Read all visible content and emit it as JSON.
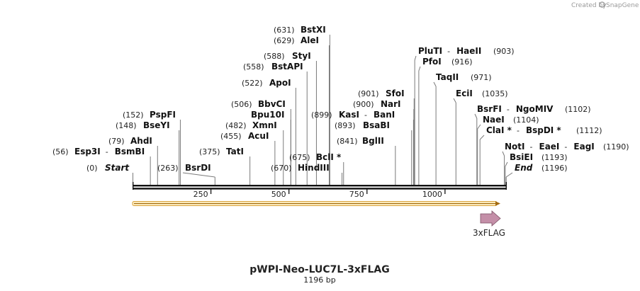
{
  "branding": {
    "created_by": "Created by",
    "app_name": "SnapGene"
  },
  "plasmid": {
    "name": "pWPI-Neo-LUC7L-3xFLAG",
    "length_label": "1196 bp",
    "length": 1196
  },
  "ruler": {
    "ticks": [
      250,
      500,
      750,
      1000
    ],
    "tick_labels": [
      "250",
      "500",
      "750",
      "1000"
    ]
  },
  "feature": {
    "name": "3xFLAG",
    "start": 1170,
    "end": 1196,
    "color": "#c48fa8",
    "direction": "forward"
  },
  "colors": {
    "backbone": "#111111",
    "orf_fill": "#fff1c6",
    "orf_stroke": "#d9a23c",
    "orf_arrow": "#a36a10"
  },
  "sites": [
    {
      "pos": "(631)",
      "names": [
        "BstXI"
      ],
      "bp": 631
    },
    {
      "pos": "(629)",
      "names": [
        "AleI"
      ],
      "bp": 629
    },
    {
      "pos": "(588)",
      "names": [
        "StyI"
      ],
      "bp": 588
    },
    {
      "pos": "(558)",
      "names": [
        "BstAPI"
      ],
      "bp": 558
    },
    {
      "pos": "(522)",
      "names": [
        "ApoI"
      ],
      "bp": 522
    },
    {
      "pos": "(506)",
      "names": [
        "BbvCI"
      ],
      "bp": 506
    },
    {
      "pos": "",
      "names": [
        "Bpu10I"
      ],
      "bp": 506
    },
    {
      "pos": "(482)",
      "names": [
        "XmnI"
      ],
      "bp": 482
    },
    {
      "pos": "(455)",
      "names": [
        "AcuI"
      ],
      "bp": 455
    },
    {
      "pos": "(375)",
      "names": [
        "TatI"
      ],
      "bp": 375
    },
    {
      "pos": "(152)",
      "names": [
        "PspFI"
      ],
      "bp": 152
    },
    {
      "pos": "(148)",
      "names": [
        "BseYI"
      ],
      "bp": 148
    },
    {
      "pos": "(79)",
      "names": [
        "AhdI"
      ],
      "bp": 79
    },
    {
      "pos": "(56)",
      "names": [
        "Esp3I",
        "BsmBI"
      ],
      "bp": 56
    },
    {
      "pos": "(0)",
      "names": [
        "Start"
      ],
      "bp": 0,
      "italic": true
    },
    {
      "pos": "(263)",
      "names": [
        "BsrDI"
      ],
      "bp": 263,
      "pos_first": false
    },
    {
      "pos": "(670)",
      "names": [
        "HindIII"
      ],
      "bp": 670
    },
    {
      "pos": "(675)",
      "names": [
        "BclI *"
      ],
      "bp": 675
    },
    {
      "pos": "(899)",
      "names": [
        "KasI",
        "BanI"
      ],
      "bp": 899
    },
    {
      "pos": "(893)",
      "names": [
        "BsaBI"
      ],
      "bp": 893
    },
    {
      "pos": "(841)",
      "names": [
        "BglII"
      ],
      "bp": 841
    },
    {
      "pos": "(901)",
      "names": [
        "SfoI"
      ],
      "bp": 901
    },
    {
      "pos": "(900)",
      "names": [
        "NarI"
      ],
      "bp": 900
    },
    {
      "pos": "(903)",
      "names": [
        "PluTI",
        "HaeII"
      ],
      "bp": 903,
      "pos_first": false
    },
    {
      "pos": "(916)",
      "names": [
        "PfoI"
      ],
      "bp": 916,
      "pos_first": false
    },
    {
      "pos": "(971)",
      "names": [
        "TaqII"
      ],
      "bp": 971,
      "pos_first": false
    },
    {
      "pos": "(1035)",
      "names": [
        "EciI"
      ],
      "bp": 1035,
      "pos_first": false
    },
    {
      "pos": "(1102)",
      "names": [
        "BsrFI",
        "NgoMIV"
      ],
      "bp": 1102,
      "pos_first": false
    },
    {
      "pos": "(1104)",
      "names": [
        "NaeI"
      ],
      "bp": 1104,
      "pos_first": false
    },
    {
      "pos": "(1112)",
      "names": [
        "ClaI *",
        "BspDI *"
      ],
      "bp": 1112,
      "pos_first": false
    },
    {
      "pos": "(1190)",
      "names": [
        "NotI",
        "EaeI",
        "EagI"
      ],
      "bp": 1190,
      "pos_first": false
    },
    {
      "pos": "(1193)",
      "names": [
        "BsiEI"
      ],
      "bp": 1193,
      "pos_first": false
    },
    {
      "pos": "(1196)",
      "names": [
        "End"
      ],
      "bp": 1196,
      "pos_first": false,
      "italic": true
    }
  ]
}
